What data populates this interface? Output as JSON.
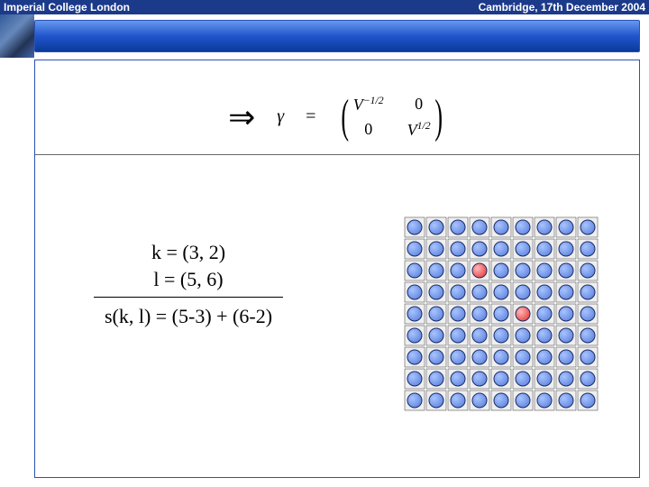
{
  "header": {
    "left": "Imperial College London",
    "right": "Cambridge, 17th December 2004"
  },
  "equation": {
    "arrow": "⇒",
    "symbol": "γ",
    "equals": "=",
    "matrix": {
      "r1c1_base": "V",
      "r1c1_exp": "−1/2",
      "r1c2": "0",
      "r2c1": "0",
      "r2c2_base": "V",
      "r2c2_exp": "1/2"
    }
  },
  "formula": {
    "line1": "k = (3, 2)",
    "line2": "l = (5, 6)",
    "line3": "s(k, l) = (5-3) + (6-2)"
  },
  "grid": {
    "rows": 9,
    "cols": 9,
    "spacing": 24,
    "cell_size": 22,
    "dot_radius": 8,
    "cell_fill": "#efefef",
    "cell_stroke": "#555555",
    "dot_fill_default": "#6488e0",
    "dot_fill_highlight": "#e84848",
    "dot_stroke": "#1a2a66",
    "highlights": [
      {
        "row": 2,
        "col": 3
      },
      {
        "row": 4,
        "col": 5
      }
    ]
  }
}
